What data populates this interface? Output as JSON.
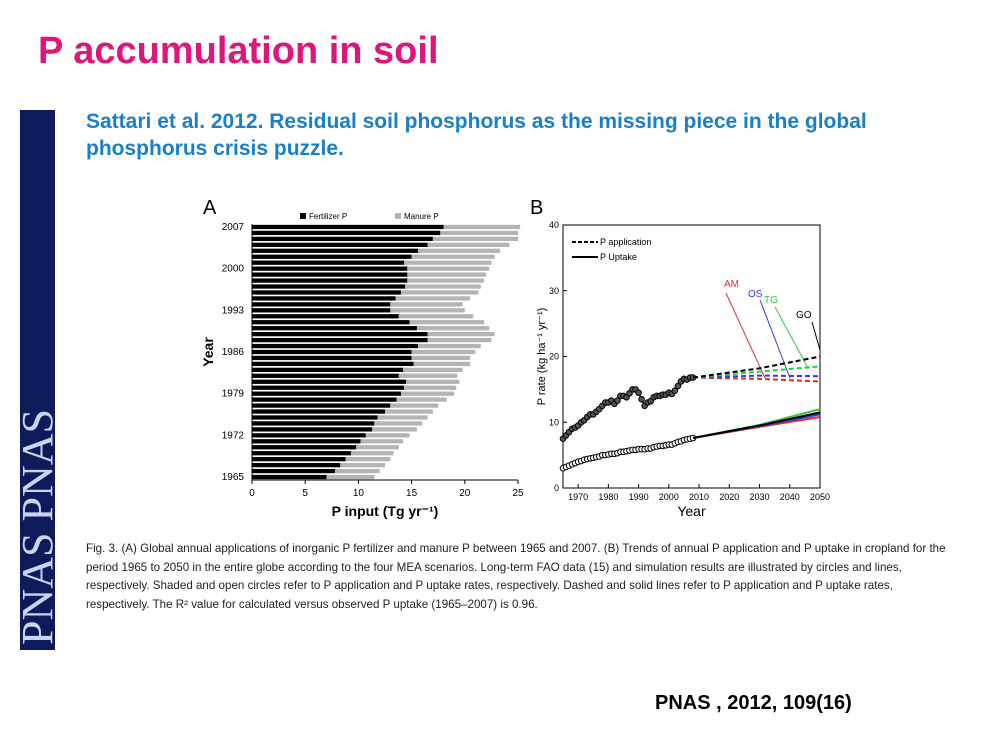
{
  "title": "P accumulation in soil",
  "subtitle": "Sattari et al. 2012. Residual soil phosphorus as the missing piece in the global phosphorus crisis puzzle.",
  "sidebar": "PNAS PNAS",
  "caption": "Fig. 3.   (A) Global annual applications of inorganic P fertilizer and manure P between 1965 and 2007. (B) Trends of annual P application and P uptake in cropland for the period 1965 to 2050 in the entire globe according to the four MEA scenarios. Long-term FAO data (15) and simulation results are illustrated by circles and lines, respectively. Shaded and open circles refer to P application and P uptake rates, respectively. Dashed and solid lines refer to P application and P uptake rates, respectively. The R² value for calculated versus observed P uptake (1965–2007) is 0.96.",
  "citation": "PNAS , 2012, 109(16)",
  "chart_data": [
    {
      "type": "bar",
      "panel": "A",
      "horizontal": true,
      "stacked": true,
      "xlabel": "P input (Tg yr⁻¹)",
      "ylabel": "Year",
      "categories": [
        "1965",
        null,
        null,
        null,
        null,
        null,
        null,
        "1972",
        null,
        null,
        null,
        null,
        null,
        null,
        "1979",
        null,
        null,
        null,
        null,
        null,
        null,
        "1986",
        null,
        null,
        null,
        null,
        null,
        null,
        "1993",
        null,
        null,
        null,
        null,
        null,
        null,
        "2000",
        null,
        null,
        null,
        null,
        null,
        null,
        "2007"
      ],
      "series": [
        {
          "name": "Fertilizer P",
          "color": "#000000",
          "values": [
            7.0,
            7.8,
            8.3,
            8.8,
            9.3,
            9.8,
            10.2,
            10.7,
            11.3,
            11.5,
            11.8,
            12.5,
            13.0,
            13.6,
            14.0,
            14.3,
            14.5,
            13.8,
            14.2,
            15.2,
            15.0,
            15.0,
            15.6,
            16.5,
            16.5,
            15.5,
            14.8,
            13.8,
            13.0,
            13.0,
            13.5,
            14.0,
            14.4,
            14.6,
            14.6,
            14.6,
            14.3,
            15.0,
            15.6,
            16.5,
            17.0,
            17.7,
            18.0
          ]
        },
        {
          "name": "Manure P",
          "color": "#b4b4b4",
          "values": [
            4.5,
            4.2,
            4.2,
            4.2,
            4.0,
            4.0,
            4.0,
            4.1,
            4.2,
            4.5,
            4.7,
            4.5,
            4.5,
            4.7,
            5.0,
            4.9,
            5.0,
            5.5,
            5.6,
            5.3,
            5.5,
            6.0,
            5.9,
            6.0,
            6.3,
            6.8,
            7.0,
            7.0,
            7.0,
            6.8,
            7.0,
            7.3,
            7.1,
            7.2,
            7.4,
            7.7,
            8.2,
            7.8,
            7.7,
            7.7,
            8.0,
            7.3,
            7.2
          ]
        }
      ],
      "xlim": [
        0,
        25
      ],
      "xticks": [
        0,
        5,
        10,
        15,
        20,
        25
      ]
    },
    {
      "type": "line",
      "panel": "B",
      "xlabel": "Year",
      "ylabel": "P rate (kg ha⁻¹ yr⁻¹)",
      "x": [
        1965,
        1966,
        1967,
        1968,
        1969,
        1970,
        1971,
        1972,
        1973,
        1974,
        1975,
        1976,
        1977,
        1978,
        1979,
        1980,
        1981,
        1982,
        1983,
        1984,
        1985,
        1986,
        1987,
        1988,
        1989,
        1990,
        1991,
        1992,
        1993,
        1994,
        1995,
        1996,
        1997,
        1998,
        1999,
        2000,
        2001,
        2002,
        2003,
        2004,
        2005,
        2006,
        2007,
        2008
      ],
      "series": [
        {
          "name": "P application",
          "color": "#000000",
          "dashed": true,
          "values": [
            7.5,
            8.0,
            8.5,
            9.0,
            9.2,
            9.5,
            10.0,
            10.3,
            10.8,
            11.2,
            11.2,
            11.6,
            12.0,
            12.5,
            13.0,
            13.0,
            13.3,
            12.8,
            13.3,
            14.0,
            14.0,
            13.8,
            14.4,
            15.0,
            15.0,
            14.5,
            13.5,
            12.5,
            13.0,
            13.2,
            13.8,
            14.0,
            14.0,
            14.2,
            14.2,
            14.5,
            14.3,
            14.8,
            15.5,
            16.2,
            16.6,
            16.5,
            16.8,
            16.8
          ]
        },
        {
          "name": "P Uptake",
          "color": "#000000",
          "dashed": false,
          "values": [
            3.0,
            3.2,
            3.4,
            3.6,
            3.8,
            4.0,
            4.1,
            4.3,
            4.4,
            4.5,
            4.6,
            4.7,
            4.8,
            5.0,
            5.0,
            5.1,
            5.2,
            5.2,
            5.3,
            5.5,
            5.5,
            5.6,
            5.7,
            5.8,
            5.8,
            5.9,
            5.9,
            5.9,
            6.0,
            6.0,
            6.2,
            6.3,
            6.4,
            6.4,
            6.5,
            6.6,
            6.6,
            6.8,
            7.0,
            7.1,
            7.3,
            7.4,
            7.5,
            7.6
          ]
        }
      ],
      "scenario_x": [
        2008,
        2030,
        2050
      ],
      "scenarios": [
        {
          "label": "AM",
          "color": "#d93030",
          "application": [
            16.8,
            16.6,
            16.2
          ],
          "uptake": [
            7.6,
            9.3,
            10.8
          ]
        },
        {
          "label": "OS",
          "color": "#3a3ad8",
          "application": [
            16.8,
            17.1,
            17.0
          ],
          "uptake": [
            7.6,
            9.4,
            11.2
          ]
        },
        {
          "label": "TG",
          "color": "#2ecc40",
          "application": [
            16.8,
            17.7,
            18.5
          ],
          "uptake": [
            7.6,
            9.6,
            12.0
          ]
        },
        {
          "label": "GO",
          "color": "#000000",
          "application": [
            16.8,
            18.2,
            20.0
          ],
          "uptake": [
            7.6,
            9.5,
            11.5
          ]
        }
      ],
      "xlim": [
        1965,
        2050
      ],
      "xticks": [
        1970,
        1980,
        1990,
        2000,
        2010,
        2020,
        2030,
        2040,
        2050
      ],
      "ylim": [
        0,
        40
      ],
      "yticks": [
        0,
        10,
        20,
        30,
        40
      ]
    }
  ]
}
